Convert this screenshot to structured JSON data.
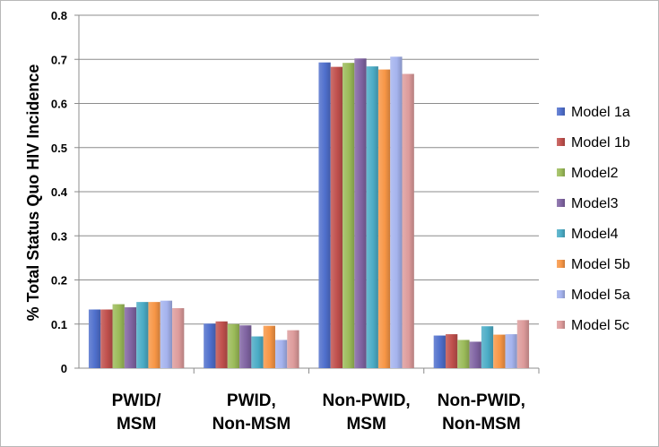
{
  "chart_data": {
    "type": "bar",
    "title": "",
    "xlabel": "",
    "ylabel": "% Total Status Quo HIV Incidence",
    "ylim": [
      0,
      0.8
    ],
    "yticks": [
      "0",
      "0.1",
      "0.2",
      "0.3",
      "0.4",
      "0.5",
      "0.6",
      "0.7",
      "0.8"
    ],
    "grid": true,
    "legend_position": "right",
    "categories": [
      [
        "PWID/",
        "MSM"
      ],
      [
        "PWID,",
        "Non-MSM"
      ],
      [
        "Non-PWID,",
        "MSM"
      ],
      [
        "Non-PWID,",
        "Non-MSM"
      ]
    ],
    "series": [
      {
        "name": "Model 1a",
        "color": "#4f6fcc",
        "values": [
          0.133,
          0.101,
          0.693,
          0.074
        ]
      },
      {
        "name": "Model 1b",
        "color": "#c0504d",
        "values": [
          0.133,
          0.106,
          0.683,
          0.077
        ]
      },
      {
        "name": "Model2",
        "color": "#9bbb59",
        "values": [
          0.145,
          0.1,
          0.692,
          0.064
        ]
      },
      {
        "name": "Model3",
        "color": "#8064a2",
        "values": [
          0.138,
          0.097,
          0.702,
          0.06
        ]
      },
      {
        "name": "Model4",
        "color": "#4bacc6",
        "values": [
          0.15,
          0.072,
          0.684,
          0.095
        ]
      },
      {
        "name": "Model 5b",
        "color": "#f79646",
        "values": [
          0.15,
          0.096,
          0.677,
          0.076
        ]
      },
      {
        "name": "Model 5a",
        "color": "#a5b3ee",
        "values": [
          0.153,
          0.064,
          0.706,
          0.077
        ]
      },
      {
        "name": "Model 5c",
        "color": "#dd9b9b",
        "values": [
          0.136,
          0.086,
          0.667,
          0.109
        ]
      }
    ]
  }
}
